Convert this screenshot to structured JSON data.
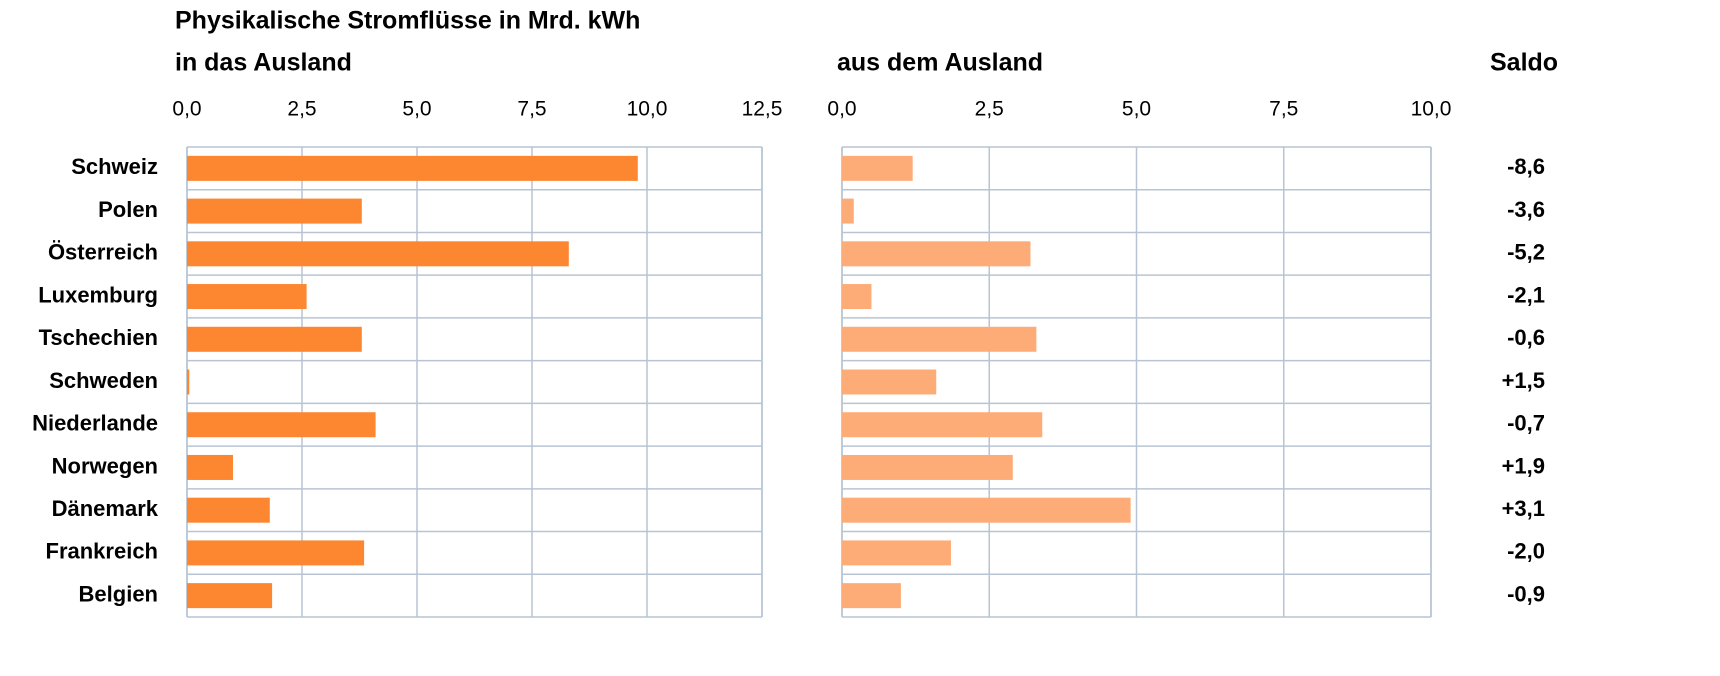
{
  "chart_data": {
    "type": "bar",
    "orientation": "horizontal",
    "title": "Physikalische Stromflüsse in Mrd. kWh",
    "categories": [
      "Schweiz",
      "Polen",
      "Österreich",
      "Luxemburg",
      "Tschechien",
      "Schweden",
      "Niederlande",
      "Norwegen",
      "Dänemark",
      "Frankreich",
      "Belgien"
    ],
    "grid": true,
    "panels": [
      {
        "subtitle": "in das Ausland",
        "color": "#fd8630",
        "values": [
          9.8,
          3.8,
          8.3,
          2.6,
          3.8,
          0.05,
          4.1,
          1.0,
          1.8,
          3.85,
          1.85
        ],
        "xlim": [
          0,
          12.5
        ],
        "xticks": [
          {
            "value": 0,
            "label": "0,0"
          },
          {
            "value": 2.5,
            "label": "2,5"
          },
          {
            "value": 5,
            "label": "5,0"
          },
          {
            "value": 7.5,
            "label": "7,5"
          },
          {
            "value": 10,
            "label": "10,0"
          },
          {
            "value": 12.5,
            "label": "12,5"
          }
        ]
      },
      {
        "subtitle": "aus dem Ausland",
        "color": "#fdac78",
        "values": [
          1.2,
          0.2,
          3.2,
          0.5,
          3.3,
          1.6,
          3.4,
          2.9,
          4.9,
          1.85,
          1.0
        ],
        "xlim": [
          0,
          10
        ],
        "xticks": [
          {
            "value": 0,
            "label": "0,0"
          },
          {
            "value": 2.5,
            "label": "2,5"
          },
          {
            "value": 5,
            "label": "5,0"
          },
          {
            "value": 7.5,
            "label": "7,5"
          },
          {
            "value": 10,
            "label": "10,0"
          }
        ]
      }
    ],
    "saldo": {
      "title": "Saldo",
      "labels": [
        "-8,6",
        "-3,6",
        "-5,2",
        "-2,1",
        "-0,6",
        "+1,5",
        "-0,7",
        "+1,9",
        "+3,1",
        "-2,0",
        "-0,9"
      ]
    }
  }
}
